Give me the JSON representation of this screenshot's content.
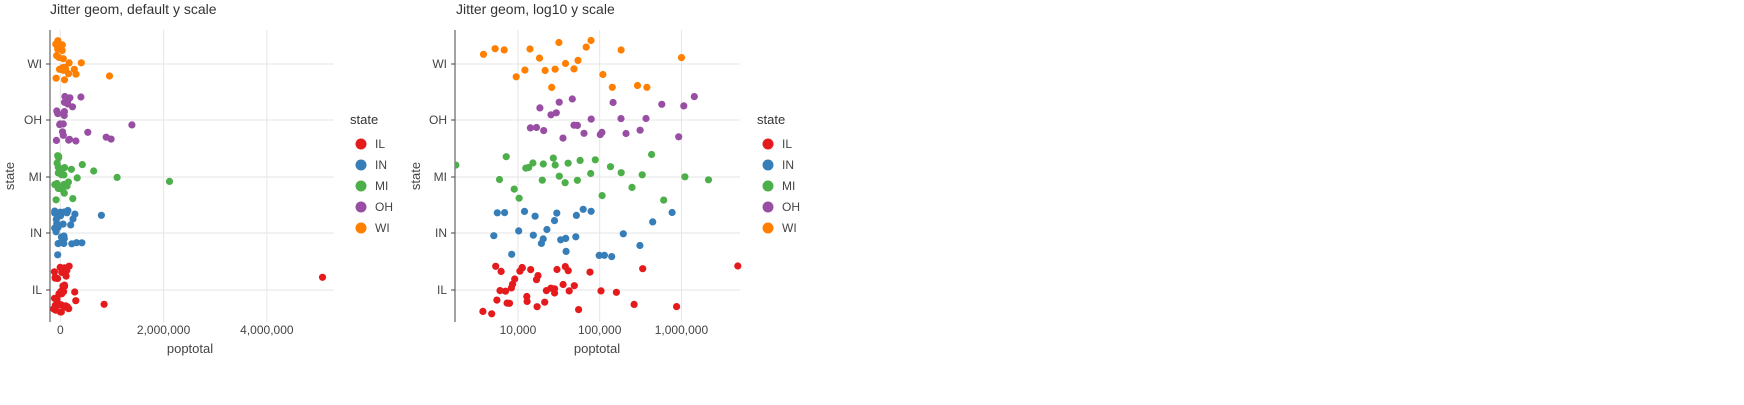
{
  "chart_data": [
    {
      "type": "scatter",
      "title": "Jitter geom, default y scale",
      "xlabel": "poptotal",
      "ylabel": "state",
      "x_scale": "linear",
      "xlim": [
        -200000,
        5300000
      ],
      "x_ticks": [
        {
          "value": 0,
          "label": "0"
        },
        {
          "value": 2000000,
          "label": "2,000,000"
        },
        {
          "value": 4000000,
          "label": "4,000,000"
        }
      ],
      "categories": [
        "IL",
        "IN",
        "MI",
        "OH",
        "WI"
      ],
      "grid": true,
      "legend_title": "state",
      "legend_position": "right",
      "series": [
        {
          "name": "IL",
          "color": "#e41a1c",
          "values": [
            5105067,
            829000,
            323000,
            262000,
            150000,
            98000,
            75000,
            60000,
            52000,
            45000,
            40000,
            36000,
            33000,
            30000,
            28000,
            26000,
            24000,
            22000,
            20000,
            18000,
            17000,
            16000,
            15000,
            14000,
            13000,
            12000,
            11000,
            10000,
            9500,
            9000,
            8500,
            8000,
            7500,
            7000,
            6500,
            6000,
            5500,
            5000,
            4500,
            4000
          ]
        },
        {
          "name": "IN",
          "color": "#377eb8",
          "values": [
            818000,
            430000,
            300000,
            200000,
            150000,
            120000,
            95000,
            80000,
            65000,
            55000,
            48000,
            42000,
            37000,
            33000,
            30000,
            27000,
            24000,
            21000,
            19000,
            17000,
            15000,
            13000,
            11000,
            9000,
            7000,
            6000,
            5000
          ]
        },
        {
          "name": "MI",
          "color": "#4daf4a",
          "values": [
            2111687,
            1100000,
            620000,
            450000,
            330000,
            230000,
            180000,
            140000,
            110000,
            90000,
            75000,
            62000,
            52000,
            44000,
            38000,
            33000,
            29000,
            25000,
            22000,
            19000,
            16000,
            14000,
            12000,
            10000,
            8500,
            7000,
            6000,
            1701
          ]
        },
        {
          "name": "OH",
          "color": "#984ea3",
          "values": [
            1412140,
            1000000,
            870000,
            550000,
            400000,
            290000,
            220000,
            170000,
            140000,
            115000,
            95000,
            80000,
            68000,
            58000,
            50000,
            43000,
            38000,
            33000,
            29000,
            25000,
            22000,
            19000,
            16000,
            14000
          ]
        },
        {
          "name": "WI",
          "color": "#ff7f00",
          "values": [
            959275,
            380000,
            280000,
            180000,
            140000,
            110000,
            85000,
            70000,
            58000,
            48000,
            40000,
            34000,
            29000,
            25000,
            21000,
            18000,
            15000,
            12000,
            9000,
            7000,
            5000,
            4000
          ]
        }
      ]
    },
    {
      "type": "scatter",
      "title": "Jitter geom, log10 y scale",
      "xlabel": "poptotal",
      "ylabel": "state",
      "x_scale": "log10",
      "xlim": [
        1700,
        5200000
      ],
      "x_ticks": [
        {
          "value": 10000,
          "label": "10,000"
        },
        {
          "value": 100000,
          "label": "100,000"
        },
        {
          "value": 1000000,
          "label": "1,000,000"
        }
      ],
      "categories": [
        "IL",
        "IN",
        "MI",
        "OH",
        "WI"
      ],
      "grid": true,
      "legend_title": "state",
      "legend_position": "right",
      "series": "same as first chart"
    }
  ]
}
